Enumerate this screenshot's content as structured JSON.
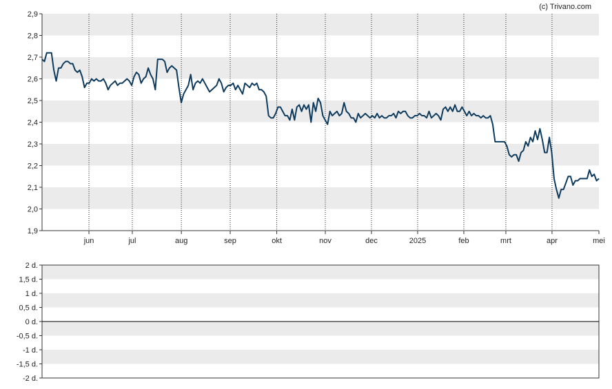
{
  "credit": "(c) Trivano.com",
  "colors": {
    "line": "#0d3a5c",
    "band": "#ebebeb",
    "grid": "#222222",
    "frame": "#333333"
  },
  "chart_data": [
    {
      "type": "line",
      "ylim": [
        1.9,
        2.9
      ],
      "y_ticks": [
        "1,9",
        "2,0",
        "2,1",
        "2,2",
        "2,3",
        "2,4",
        "2,5",
        "2,6",
        "2,7",
        "2,8",
        "2,9"
      ],
      "x_ticks": [
        "jun",
        "jul",
        "aug",
        "sep",
        "okt",
        "nov",
        "dec",
        "2025",
        "feb",
        "mrt",
        "apr",
        "mei"
      ],
      "grid": "vertical dotted lines at month ticks, alternating horizontal bands",
      "series": [
        {
          "values": [
            2.69,
            2.68,
            2.72,
            2.72,
            2.72,
            2.64,
            2.59,
            2.65,
            2.65,
            2.67,
            2.68,
            2.68,
            2.67,
            2.67,
            2.64,
            2.63,
            2.64,
            2.61,
            2.56,
            2.58,
            2.58,
            2.6,
            2.59,
            2.6,
            2.59,
            2.59,
            2.6,
            2.58,
            2.55,
            2.57,
            2.58,
            2.59,
            2.57,
            2.58,
            2.58,
            2.59,
            2.6,
            2.59,
            2.57,
            2.61,
            2.63,
            2.62,
            2.58,
            2.6,
            2.61,
            2.65,
            2.62,
            2.6,
            2.55,
            2.69,
            2.69,
            2.69,
            2.68,
            2.63,
            2.65,
            2.66,
            2.65,
            2.64,
            2.56,
            2.49,
            2.53,
            2.55,
            2.57,
            2.62,
            2.55,
            2.58,
            2.59,
            2.58,
            2.6,
            2.58,
            2.56,
            2.54,
            2.55,
            2.56,
            2.57,
            2.6,
            2.58,
            2.54,
            2.56,
            2.57,
            2.57,
            2.58,
            2.55,
            2.57,
            2.55,
            2.53,
            2.58,
            2.57,
            2.56,
            2.58,
            2.57,
            2.58,
            2.55,
            2.55,
            2.54,
            2.52,
            2.43,
            2.42,
            2.42,
            2.44,
            2.47,
            2.47,
            2.45,
            2.43,
            2.43,
            2.41,
            2.46,
            2.41,
            2.47,
            2.48,
            2.45,
            2.48,
            2.46,
            2.48,
            2.4,
            2.49,
            2.45,
            2.51,
            2.49,
            2.43,
            2.41,
            2.39,
            2.45,
            2.43,
            2.44,
            2.45,
            2.43,
            2.44,
            2.49,
            2.45,
            2.44,
            2.42,
            2.42,
            2.4,
            2.44,
            2.42,
            2.43,
            2.44,
            2.43,
            2.42,
            2.43,
            2.42,
            2.44,
            2.42,
            2.43,
            2.42,
            2.42,
            2.43,
            2.43,
            2.44,
            2.42,
            2.45,
            2.44,
            2.45,
            2.45,
            2.43,
            2.42,
            2.42,
            2.43,
            2.43,
            2.44,
            2.43,
            2.43,
            2.42,
            2.45,
            2.42,
            2.43,
            2.44,
            2.43,
            2.41,
            2.46,
            2.47,
            2.45,
            2.47,
            2.45,
            2.48,
            2.45,
            2.45,
            2.47,
            2.45,
            2.43,
            2.45,
            2.43,
            2.44,
            2.43,
            2.43,
            2.42,
            2.43,
            2.42,
            2.42,
            2.43,
            2.39,
            2.31,
            2.31,
            2.31,
            2.31,
            2.31,
            2.29,
            2.25,
            2.24,
            2.25,
            2.25,
            2.22,
            2.26,
            2.27,
            2.31,
            2.29,
            2.33,
            2.31,
            2.36,
            2.32,
            2.37,
            2.32,
            2.26,
            2.26,
            2.33,
            2.26,
            2.14,
            2.09,
            2.05,
            2.09,
            2.09,
            2.12,
            2.15,
            2.15,
            2.11,
            2.13,
            2.13,
            2.14,
            2.14,
            2.14,
            2.14,
            2.18,
            2.15,
            2.16,
            2.13,
            2.14
          ]
        }
      ]
    },
    {
      "type": "line",
      "ylim": [
        -2,
        2
      ],
      "y_ticks": [
        "2 d.",
        "1,5 d.",
        "1 d.",
        "0,5 d.",
        "0 d.",
        "-0,5 d.",
        "-1 d.",
        "-1,5 d.",
        "-2 d."
      ],
      "series": []
    }
  ]
}
